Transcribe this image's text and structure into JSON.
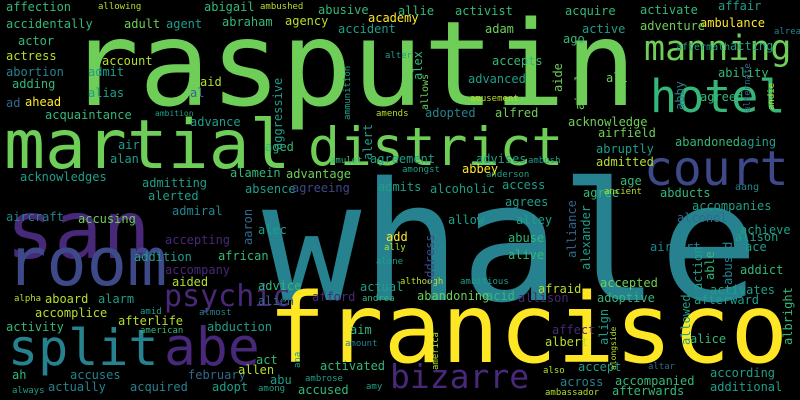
{
  "words": [
    "rasputin",
    "whale",
    "francisco",
    "san",
    "martial",
    "district",
    "manning",
    "hotel",
    "court",
    "room",
    "split",
    "abe",
    "psychic",
    "bizarre",
    "affection",
    "allowing",
    "abigail",
    "ambushed",
    "abusive",
    "allie",
    "activist",
    "acquire",
    "activate",
    "affair",
    "ambulance",
    "already",
    "accidentally",
    "adult",
    "agent",
    "abraham",
    "agency",
    "accident",
    "academy",
    "adam",
    "ago",
    "active",
    "adventure",
    "acting",
    "aftermath",
    "actor",
    "actress",
    "abortion",
    "adding",
    "ad",
    "account",
    "admit",
    "alias",
    "aid",
    "al",
    "advanced",
    "accepts",
    "ali",
    "ability",
    "agreed",
    "alternate",
    "ahead",
    "acquaintance",
    "advance",
    "ambition",
    "adopted",
    "alfred",
    "acknowledge",
    "airfield",
    "abandoned",
    "aging",
    "aged",
    "air",
    "alan",
    "abruptly",
    "agreement",
    "advises",
    "admitted",
    "amulet",
    "ambush",
    "acknowledges",
    "advantage",
    "anderson",
    "amongst",
    "alamein",
    "age",
    "admitting",
    "alerted",
    "absence",
    "agreeing",
    "admits",
    "alcoholic",
    "access",
    "agrees",
    "abducts",
    "aang",
    "admiral",
    "agree",
    "ancient",
    "allow",
    "alley",
    "accompanies",
    "achieve",
    "alcohol",
    "alison",
    "aircraft",
    "accusing",
    "accepting",
    "alec",
    "add",
    "ally",
    "abuse",
    "airport",
    "ace",
    "african",
    "alive",
    "addition",
    "accompany",
    "alone",
    "addict",
    "actual",
    "although",
    "ambitious",
    "afraid",
    "accepted",
    "activates",
    "aboard",
    "alarm",
    "aided",
    "advice",
    "alien",
    "afford",
    "andrea",
    "abandoning",
    "acid",
    "allison",
    "adoptive",
    "afterward",
    "alpha",
    "accomplice",
    "afterlife",
    "almost",
    "american",
    "activity",
    "abduction",
    "aim",
    "affect",
    "albert",
    "alice",
    "amid",
    "act",
    "ah",
    "accuses",
    "february",
    "allen",
    "abu",
    "activated",
    "also",
    "accept",
    "altar",
    "according",
    "accused",
    "adopt",
    "acquired",
    "actually",
    "ambrose",
    "amy",
    "among",
    "always",
    "across",
    "accompanied",
    "additional",
    "afterwards",
    "ambassador",
    "amount",
    "amends",
    "alter",
    "amusement",
    "ammunition",
    "alert",
    "allows",
    "airplane",
    "aide",
    "alex",
    "abby",
    "andie",
    "abbey",
    "aggressive",
    "aaron",
    "abused",
    "able",
    "action",
    "allowed",
    "alliance",
    "alexander",
    "address",
    "align",
    "alongside",
    "america",
    "albright",
    "ana"
  ]
}
